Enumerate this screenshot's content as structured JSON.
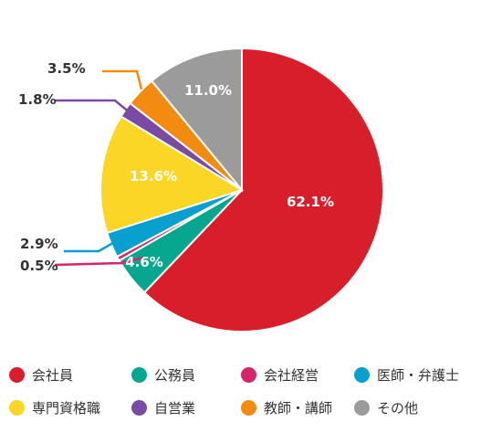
{
  "chart_data": {
    "type": "pie",
    "title": "",
    "slices": [
      {
        "name": "会社員",
        "value": 62.1,
        "label": "62.1%",
        "color": "#d81e2b"
      },
      {
        "name": "公務員",
        "value": 4.6,
        "label": "4.6%",
        "color": "#06a78e"
      },
      {
        "name": "会社経営",
        "value": 0.5,
        "label": "0.5%",
        "color": "#d6266a"
      },
      {
        "name": "医師・弁護士",
        "value": 2.9,
        "label": "2.9%",
        "color": "#099fcf"
      },
      {
        "name": "専門資格職",
        "value": 13.6,
        "label": "13.6%",
        "color": "#fcd624"
      },
      {
        "name": "自営業",
        "value": 1.8,
        "label": "1.8%",
        "color": "#7b4aa3"
      },
      {
        "name": "教師・講師",
        "value": 3.5,
        "label": "3.5%",
        "color": "#f28b10"
      },
      {
        "name": "その他",
        "value": 11.0,
        "label": "11.0%",
        "color": "#9b9b9b"
      }
    ],
    "legend_position": "bottom"
  }
}
